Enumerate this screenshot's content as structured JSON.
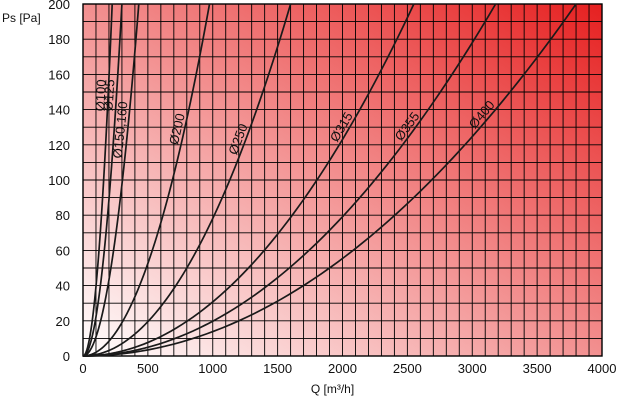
{
  "chart_data": {
    "type": "line",
    "xlabel": "Q [m³/h]",
    "ylabel": "Ps [Pa]",
    "xlim": [
      0,
      4000
    ],
    "ylim": [
      0,
      200
    ],
    "x_ticks": [
      0,
      500,
      1000,
      1500,
      2000,
      2500,
      3000,
      3500,
      4000
    ],
    "y_ticks": [
      0,
      20,
      40,
      60,
      80,
      100,
      120,
      140,
      160,
      180,
      200
    ],
    "x_tick_labels": [
      "0",
      "500",
      "1000",
      "1500",
      "2000",
      "2500",
      "3000",
      "3500",
      "4000"
    ],
    "y_tick_labels": [
      "0",
      "20",
      "40",
      "60",
      "80",
      "100",
      "120",
      "140",
      "160",
      "180",
      "200"
    ],
    "grid": true,
    "x_minor_step": 100,
    "y_minor_step": 10,
    "background_gradient": {
      "from": "#ffffff",
      "to": "#e62020"
    },
    "line_color": "#1a1a1a",
    "series": [
      {
        "name": "Ø100",
        "q_at_200pa": 225,
        "x": [
          0,
          50,
          100,
          150,
          200,
          225
        ],
        "y": [
          0,
          9.9,
          39.5,
          88.9,
          158.0,
          200
        ]
      },
      {
        "name": "Ø125",
        "q_at_200pa": 300,
        "x": [
          0,
          75,
          150,
          225,
          300
        ],
        "y": [
          0,
          12.5,
          50,
          112.5,
          200
        ]
      },
      {
        "name": "Ø150,160",
        "q_at_200pa": 430,
        "x": [
          0,
          100,
          200,
          300,
          430
        ],
        "y": [
          0,
          10.8,
          43.3,
          97.3,
          200
        ]
      },
      {
        "name": "Ø200",
        "q_at_200pa": 975,
        "x": [
          0,
          250,
          500,
          750,
          975
        ],
        "y": [
          0,
          13.1,
          52.6,
          118.3,
          200
        ]
      },
      {
        "name": "Ø250",
        "q_at_200pa": 1600,
        "x": [
          0,
          400,
          800,
          1200,
          1600
        ],
        "y": [
          0,
          12.5,
          50,
          112.5,
          200
        ]
      },
      {
        "name": "Ø315",
        "q_at_200pa": 2550,
        "x": [
          0,
          600,
          1200,
          1800,
          2550
        ],
        "y": [
          0,
          11.1,
          44.3,
          99.7,
          200
        ]
      },
      {
        "name": "Ø355",
        "q_at_200pa": 3180,
        "x": [
          0,
          800,
          1600,
          2400,
          3180
        ],
        "y": [
          0,
          12.7,
          50.6,
          113.9,
          200
        ]
      },
      {
        "name": "Ø400",
        "q_at_200pa": 3800,
        "x": [
          0,
          950,
          1900,
          2850,
          3800
        ],
        "y": [
          0,
          12.5,
          50,
          112.5,
          200
        ]
      }
    ]
  }
}
